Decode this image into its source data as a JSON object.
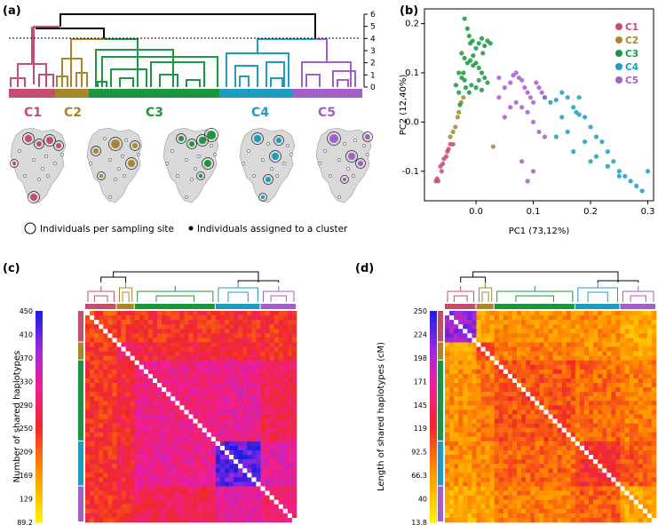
{
  "panels": {
    "a": "(a)",
    "b": "(b)",
    "c": "(c)",
    "d": "(d)"
  },
  "clusters": [
    {
      "name": "C1",
      "color": "#c44e6e"
    },
    {
      "name": "C2",
      "color": "#a8872a"
    },
    {
      "name": "C3",
      "color": "#1a9641"
    },
    {
      "name": "C4",
      "color": "#1f9bbf"
    },
    {
      "name": "C5",
      "color": "#a35fc9"
    }
  ],
  "dendrogram_axis": {
    "ticks": [
      "0",
      "1",
      "2",
      "3",
      "4",
      "5",
      "6"
    ],
    "cut_height": 3.8
  },
  "map_legend": {
    "sites": "Individuals per sampling site",
    "assigned": "Individuals assigned to a cluster"
  },
  "chart_data": [
    {
      "type": "scatter",
      "panel": "b",
      "xlabel": "PC1 (73,12%)",
      "ylabel": "PC2 (12,40%)",
      "xlim": [
        -0.09,
        0.31
      ],
      "ylim": [
        -0.16,
        0.23
      ],
      "xticks": [
        "0.0",
        "0.1",
        "0.2",
        "0.3"
      ],
      "yticks": [
        "-0.1",
        "0.0",
        "0.1",
        "0.2"
      ],
      "series": [
        {
          "name": "C1",
          "points": [
            [
              -0.07,
              -0.12
            ],
            [
              -0.068,
              -0.115
            ],
            [
              -0.066,
              -0.12
            ],
            [
              -0.06,
              -0.1
            ],
            [
              -0.058,
              -0.085
            ],
            [
              -0.056,
              -0.075
            ],
            [
              -0.052,
              -0.07
            ],
            [
              -0.05,
              -0.06
            ],
            [
              -0.048,
              -0.055
            ],
            [
              -0.045,
              -0.045
            ],
            [
              -0.04,
              -0.045
            ],
            [
              -0.062,
              -0.09
            ]
          ]
        },
        {
          "name": "C2",
          "points": [
            [
              -0.045,
              -0.03
            ],
            [
              -0.04,
              -0.02
            ],
            [
              -0.036,
              -0.01
            ],
            [
              -0.032,
              0.01
            ],
            [
              -0.03,
              0.02
            ],
            [
              -0.026,
              0.04
            ],
            [
              -0.022,
              0.05
            ],
            [
              0.03,
              -0.05
            ]
          ]
        },
        {
          "name": "C3",
          "points": [
            [
              -0.02,
              0.21
            ],
            [
              -0.015,
              0.19
            ],
            [
              -0.012,
              0.175
            ],
            [
              -0.01,
              0.16
            ],
            [
              -0.006,
              0.165
            ],
            [
              0.0,
              0.15
            ],
            [
              0.005,
              0.16
            ],
            [
              0.01,
              0.17
            ],
            [
              0.015,
              0.155
            ],
            [
              0.02,
              0.165
            ],
            [
              0.025,
              0.16
            ],
            [
              -0.025,
              0.14
            ],
            [
              -0.02,
              0.13
            ],
            [
              -0.015,
              0.12
            ],
            [
              -0.01,
              0.125
            ],
            [
              -0.005,
              0.115
            ],
            [
              0.0,
              0.12
            ],
            [
              0.005,
              0.11
            ],
            [
              0.01,
              0.1
            ],
            [
              0.015,
              0.09
            ],
            [
              0.02,
              0.08
            ],
            [
              -0.03,
              0.1
            ],
            [
              -0.025,
              0.09
            ],
            [
              -0.02,
              0.085
            ],
            [
              -0.018,
              0.07
            ],
            [
              -0.012,
              0.06
            ],
            [
              -0.008,
              0.075
            ],
            [
              0.0,
              0.07
            ],
            [
              0.005,
              0.085
            ],
            [
              0.01,
              0.065
            ],
            [
              -0.035,
              0.075
            ],
            [
              -0.03,
              0.06
            ],
            [
              -0.022,
              0.1
            ],
            [
              0.012,
              0.14
            ],
            [
              -0.028,
              0.035
            ],
            [
              -0.005,
              0.135
            ]
          ]
        },
        {
          "name": "C4",
          "points": [
            [
              0.12,
              0.05
            ],
            [
              0.13,
              0.04
            ],
            [
              0.14,
              0.045
            ],
            [
              0.15,
              0.06
            ],
            [
              0.16,
              0.05
            ],
            [
              0.17,
              0.03
            ],
            [
              0.175,
              0.02
            ],
            [
              0.18,
              0.015
            ],
            [
              0.19,
              0.01
            ],
            [
              0.2,
              -0.01
            ],
            [
              0.21,
              -0.03
            ],
            [
              0.22,
              -0.04
            ],
            [
              0.23,
              -0.06
            ],
            [
              0.24,
              -0.08
            ],
            [
              0.25,
              -0.1
            ],
            [
              0.26,
              -0.11
            ],
            [
              0.27,
              -0.12
            ],
            [
              0.28,
              -0.13
            ],
            [
              0.29,
              -0.14
            ],
            [
              0.3,
              -0.1
            ],
            [
              0.19,
              -0.04
            ],
            [
              0.17,
              -0.06
            ],
            [
              0.16,
              -0.02
            ],
            [
              0.2,
              -0.08
            ],
            [
              0.21,
              -0.07
            ],
            [
              0.23,
              -0.09
            ],
            [
              0.25,
              -0.11
            ],
            [
              0.14,
              -0.03
            ],
            [
              0.15,
              0.01
            ],
            [
              0.18,
              0.05
            ]
          ]
        },
        {
          "name": "C5",
          "points": [
            [
              0.04,
              0.09
            ],
            [
              0.05,
              0.07
            ],
            [
              0.06,
              0.08
            ],
            [
              0.065,
              0.095
            ],
            [
              0.07,
              0.1
            ],
            [
              0.075,
              0.09
            ],
            [
              0.08,
              0.085
            ],
            [
              0.085,
              0.07
            ],
            [
              0.09,
              0.06
            ],
            [
              0.095,
              0.05
            ],
            [
              0.1,
              0.04
            ],
            [
              0.105,
              0.08
            ],
            [
              0.11,
              0.07
            ],
            [
              0.115,
              0.06
            ],
            [
              0.12,
              0.05
            ],
            [
              0.07,
              0.04
            ],
            [
              0.08,
              0.03
            ],
            [
              0.09,
              0.02
            ],
            [
              0.1,
              0.0
            ],
            [
              0.11,
              -0.02
            ],
            [
              0.12,
              -0.03
            ],
            [
              0.08,
              -0.08
            ],
            [
              0.09,
              -0.12
            ],
            [
              0.1,
              -0.1
            ],
            [
              0.04,
              0.05
            ],
            [
              0.06,
              0.03
            ],
            [
              0.05,
              0.01
            ]
          ]
        }
      ]
    },
    {
      "type": "heatmap",
      "panel": "c",
      "colorbar_label": "Number of shared haplotypes",
      "colorbar_ticks": [
        "450",
        "410",
        "370",
        "330",
        "290",
        "250",
        "209",
        "169",
        "129",
        "89.2"
      ],
      "vmin": 89.2,
      "vmax": 450,
      "cluster_sizes": [
        7,
        4,
        18,
        10,
        8
      ],
      "block_means": [
        [
          230,
          240,
          245,
          250,
          245
        ],
        [
          240,
          300,
          260,
          265,
          255
        ],
        [
          245,
          260,
          310,
          320,
          280
        ],
        [
          250,
          265,
          320,
          420,
          330
        ],
        [
          245,
          255,
          280,
          330,
          300
        ]
      ]
    },
    {
      "type": "heatmap",
      "panel": "d",
      "colorbar_label": "Length of shared haplotypes (cM)",
      "colorbar_ticks": [
        "250",
        "224",
        "198",
        "171",
        "145",
        "119",
        "92.5",
        "66.3",
        "40",
        "13.8"
      ],
      "vmin": 13.8,
      "vmax": 250,
      "cluster_sizes": [
        7,
        4,
        18,
        10,
        8
      ],
      "block_means": [
        [
          210,
          60,
          70,
          70,
          55
        ],
        [
          60,
          110,
          80,
          70,
          60
        ],
        [
          70,
          80,
          100,
          90,
          80
        ],
        [
          70,
          70,
          90,
          120,
          95
        ],
        [
          55,
          60,
          80,
          95,
          60
        ]
      ]
    }
  ]
}
